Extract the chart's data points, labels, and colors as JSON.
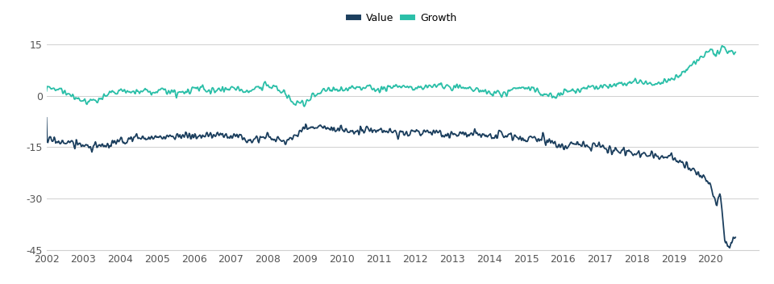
{
  "legend_labels": [
    "Value",
    "Growth"
  ],
  "value_color": "#1c3f5e",
  "growth_color": "#2bbfa8",
  "background_color": "#ffffff",
  "grid_color": "#d0d0d0",
  "ylim": [
    -45,
    18
  ],
  "yticks": [
    -45,
    -30,
    -15,
    0,
    15
  ],
  "xlim": [
    2002,
    2021.3
  ],
  "figsize": [
    9.6,
    3.52
  ],
  "dpi": 100,
  "segments_value": [
    [
      2002.0,
      -13.0
    ],
    [
      2002.5,
      -13.5
    ],
    [
      2003.0,
      -14.5
    ],
    [
      2003.5,
      -15.0
    ],
    [
      2004.0,
      -13.5
    ],
    [
      2004.5,
      -12.0
    ],
    [
      2005.0,
      -12.5
    ],
    [
      2005.5,
      -11.5
    ],
    [
      2006.0,
      -12.0
    ],
    [
      2006.5,
      -11.5
    ],
    [
      2007.0,
      -11.5
    ],
    [
      2007.5,
      -12.5
    ],
    [
      2008.0,
      -12.0
    ],
    [
      2008.5,
      -13.5
    ],
    [
      2009.0,
      -9.0
    ],
    [
      2009.5,
      -9.5
    ],
    [
      2010.0,
      -10.0
    ],
    [
      2010.5,
      -10.5
    ],
    [
      2011.0,
      -10.0
    ],
    [
      2011.5,
      -11.0
    ],
    [
      2012.0,
      -10.5
    ],
    [
      2012.5,
      -11.0
    ],
    [
      2013.0,
      -11.5
    ],
    [
      2013.5,
      -11.0
    ],
    [
      2014.0,
      -12.0
    ],
    [
      2014.5,
      -11.5
    ],
    [
      2015.0,
      -12.5
    ],
    [
      2015.5,
      -13.0
    ],
    [
      2016.0,
      -14.5
    ],
    [
      2016.5,
      -14.0
    ],
    [
      2017.0,
      -15.0
    ],
    [
      2017.5,
      -16.0
    ],
    [
      2018.0,
      -17.0
    ],
    [
      2018.5,
      -17.5
    ],
    [
      2019.0,
      -18.0
    ],
    [
      2019.3,
      -20.0
    ],
    [
      2019.6,
      -22.5
    ],
    [
      2019.85,
      -24.5
    ],
    [
      2020.0,
      -27.0
    ],
    [
      2020.15,
      -32.0
    ],
    [
      2020.25,
      -27.5
    ],
    [
      2020.38,
      -42.5
    ],
    [
      2020.5,
      -44.0
    ],
    [
      2020.6,
      -41.5
    ],
    [
      2020.67,
      -41.5
    ]
  ],
  "segments_growth": [
    [
      2002.0,
      2.5
    ],
    [
      2002.5,
      1.0
    ],
    [
      2003.0,
      -1.5
    ],
    [
      2003.3,
      -2.0
    ],
    [
      2003.6,
      0.5
    ],
    [
      2004.0,
      1.5
    ],
    [
      2004.5,
      1.0
    ],
    [
      2005.0,
      1.5
    ],
    [
      2005.5,
      1.0
    ],
    [
      2006.0,
      2.0
    ],
    [
      2006.5,
      1.5
    ],
    [
      2007.0,
      2.0
    ],
    [
      2007.5,
      1.5
    ],
    [
      2008.0,
      3.0
    ],
    [
      2008.4,
      1.0
    ],
    [
      2008.7,
      -2.0
    ],
    [
      2009.0,
      -2.0
    ],
    [
      2009.3,
      0.5
    ],
    [
      2009.6,
      1.5
    ],
    [
      2010.0,
      2.0
    ],
    [
      2010.5,
      2.5
    ],
    [
      2011.0,
      2.0
    ],
    [
      2011.5,
      2.5
    ],
    [
      2012.0,
      2.0
    ],
    [
      2012.5,
      3.0
    ],
    [
      2013.0,
      2.5
    ],
    [
      2013.5,
      2.0
    ],
    [
      2014.0,
      1.0
    ],
    [
      2014.3,
      0.5
    ],
    [
      2014.6,
      1.5
    ],
    [
      2015.0,
      2.5
    ],
    [
      2015.5,
      0.5
    ],
    [
      2015.8,
      -0.5
    ],
    [
      2016.0,
      1.0
    ],
    [
      2016.5,
      2.0
    ],
    [
      2017.0,
      2.5
    ],
    [
      2017.5,
      3.0
    ],
    [
      2018.0,
      4.0
    ],
    [
      2018.5,
      3.5
    ],
    [
      2019.0,
      5.0
    ],
    [
      2019.3,
      7.0
    ],
    [
      2019.5,
      9.0
    ],
    [
      2019.7,
      11.0
    ],
    [
      2019.9,
      13.0
    ],
    [
      2020.0,
      13.5
    ],
    [
      2020.15,
      12.0
    ],
    [
      2020.3,
      14.0
    ],
    [
      2020.45,
      13.0
    ],
    [
      2020.6,
      12.5
    ],
    [
      2020.67,
      12.5
    ]
  ],
  "noise_val_scale": 0.9,
  "noise_growth_scale": 0.7,
  "noise_seed": 17
}
